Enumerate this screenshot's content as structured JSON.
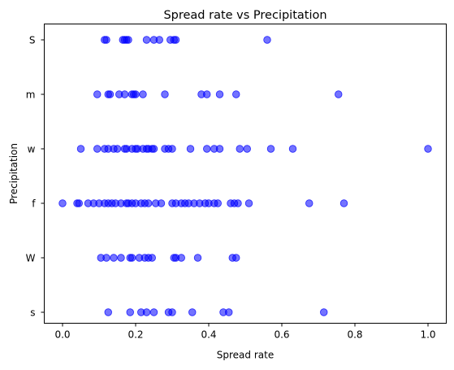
{
  "chart_data": {
    "type": "scatter",
    "title": "Spread rate vs Precipitation",
    "xlabel": "Spread rate",
    "ylabel": "Precipitation",
    "xlim": [
      -0.05,
      1.05
    ],
    "xticks": [
      0.0,
      0.2,
      0.4,
      0.6,
      0.8,
      1.0
    ],
    "xtick_labels": [
      "0.0",
      "0.2",
      "0.4",
      "0.6",
      "0.8",
      "1.0"
    ],
    "categories": [
      "s",
      "W",
      "f",
      "w",
      "m",
      "S"
    ],
    "grid": false,
    "marker_color": "#0000ff",
    "marker_alpha": 0.55,
    "series": [
      {
        "values": [
          {
            "y": "S",
            "x": [
              0.115,
              0.12,
              0.165,
              0.17,
              0.175,
              0.18,
              0.23,
              0.25,
              0.265,
              0.295,
              0.305,
              0.31,
              0.56
            ]
          },
          {
            "y": "m",
            "x": [
              0.095,
              0.125,
              0.13,
              0.155,
              0.17,
              0.19,
              0.195,
              0.2,
              0.22,
              0.28,
              0.38,
              0.395,
              0.43,
              0.475,
              0.755
            ]
          },
          {
            "y": "w",
            "x": [
              0.05,
              0.095,
              0.115,
              0.125,
              0.14,
              0.15,
              0.17,
              0.175,
              0.19,
              0.2,
              0.205,
              0.22,
              0.23,
              0.235,
              0.245,
              0.25,
              0.28,
              0.29,
              0.3,
              0.35,
              0.395,
              0.415,
              0.43,
              0.485,
              0.505,
              0.57,
              0.63,
              1.0
            ]
          },
          {
            "y": "f",
            "x": [
              0.0,
              0.04,
              0.045,
              0.07,
              0.085,
              0.1,
              0.115,
              0.125,
              0.135,
              0.145,
              0.16,
              0.175,
              0.18,
              0.19,
              0.2,
              0.215,
              0.225,
              0.235,
              0.255,
              0.27,
              0.3,
              0.31,
              0.325,
              0.335,
              0.345,
              0.36,
              0.375,
              0.39,
              0.4,
              0.415,
              0.425,
              0.46,
              0.47,
              0.48,
              0.51,
              0.675,
              0.77
            ]
          },
          {
            "y": "W",
            "x": [
              0.105,
              0.12,
              0.14,
              0.16,
              0.185,
              0.19,
              0.21,
              0.225,
              0.235,
              0.245,
              0.305,
              0.31,
              0.325,
              0.37,
              0.465,
              0.475
            ]
          },
          {
            "y": "s",
            "x": [
              0.125,
              0.185,
              0.215,
              0.23,
              0.25,
              0.29,
              0.3,
              0.355,
              0.44,
              0.455,
              0.715
            ]
          }
        ]
      }
    ]
  }
}
